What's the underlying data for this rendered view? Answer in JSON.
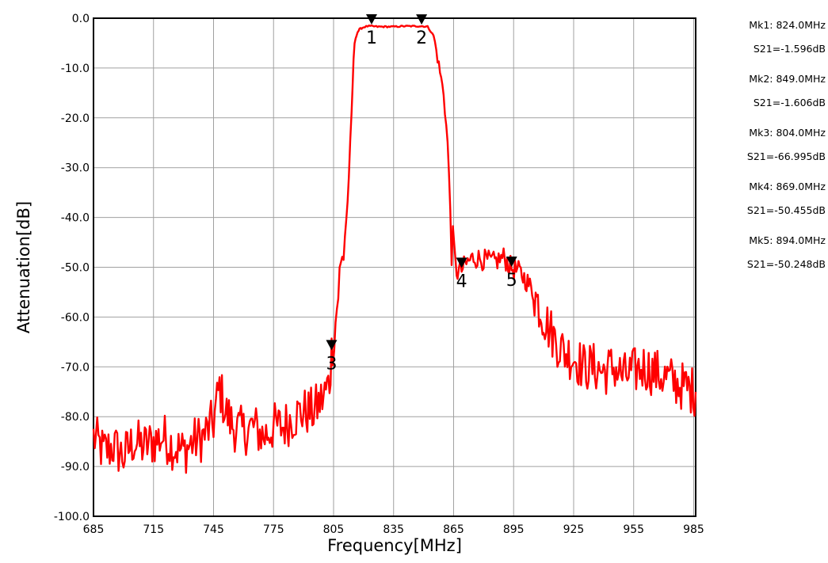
{
  "chart_data": {
    "type": "line",
    "xlabel": "Frequency[MHz]",
    "ylabel": "Attenuation[dB]",
    "xlim": [
      685,
      986
    ],
    "ylim": [
      -100,
      0
    ],
    "x_ticks": [
      "685",
      "715",
      "745",
      "775",
      "805",
      "835",
      "865",
      "895",
      "925",
      "955",
      "985"
    ],
    "y_ticks": [
      "0.0",
      "-10.0",
      "-20.0",
      "-30.0",
      "-40.0",
      "-50.0",
      "-60.0",
      "-70.0",
      "-80.0",
      "-90.0",
      "-100.0"
    ],
    "grid": true,
    "series": [
      {
        "color": "#ff0000",
        "x": [
          685,
          690,
          695,
          700,
          705,
          710,
          715,
          720,
          725,
          730,
          735,
          740,
          745,
          748,
          751,
          755,
          760,
          765,
          770,
          775,
          780,
          785,
          790,
          795,
          800,
          803,
          804,
          806,
          808,
          810,
          812,
          814,
          815,
          816,
          817,
          818,
          819,
          820,
          822,
          824,
          827,
          830,
          835,
          840,
          845,
          849,
          852,
          855,
          857,
          860,
          862,
          864,
          866,
          867,
          869,
          872,
          875,
          880,
          885,
          890,
          894,
          898,
          902,
          906,
          910,
          915,
          920,
          925,
          930,
          935,
          940,
          945,
          950,
          955,
          960,
          965,
          970,
          975,
          980,
          986
        ],
        "y": [
          -84,
          -87,
          -86,
          -88,
          -85,
          -86,
          -85,
          -84,
          -86,
          -87,
          -85,
          -84,
          -81,
          -74,
          -79,
          -82,
          -83,
          -82,
          -84,
          -82,
          -82,
          -80,
          -79,
          -79,
          -76,
          -73,
          -67,
          -61,
          -52,
          -47,
          -37,
          -20,
          -8,
          -4,
          -2.8,
          -2.2,
          -2,
          -1.8,
          -1.6,
          -1.6,
          -1.7,
          -1.7,
          -1.7,
          -1.6,
          -1.6,
          -1.6,
          -1.7,
          -3.5,
          -8,
          -15,
          -25,
          -45,
          -50,
          -51,
          -50.5,
          -49,
          -48,
          -48.5,
          -49,
          -48,
          -50.2,
          -51,
          -53,
          -56,
          -60,
          -64,
          -67,
          -68,
          -70,
          -70,
          -71,
          -70,
          -72,
          -71,
          -70,
          -71,
          -72,
          -73,
          -74,
          -75
        ]
      }
    ],
    "markers": [
      {
        "label": "1",
        "freq": 824.0,
        "value": -1.596
      },
      {
        "label": "2",
        "freq": 849.0,
        "value": -1.606
      },
      {
        "label": "3",
        "freq": 804.0,
        "value": -66.995
      },
      {
        "label": "4",
        "freq": 869.0,
        "value": -50.455
      },
      {
        "label": "5",
        "freq": 894.0,
        "value": -50.248
      }
    ],
    "marker_readout": [
      {
        "mk": "Mk1:  824.0MHz",
        "s21": "S21=-1.596dB"
      },
      {
        "mk": "Mk2:  849.0MHz",
        "s21": "S21=-1.606dB"
      },
      {
        "mk": "Mk3:  804.0MHz",
        "s21": "S21=-66.995dB"
      },
      {
        "mk": "Mk4:  869.0MHz",
        "s21": "S21=-50.455dB"
      },
      {
        "mk": "Mk5:  894.0MHz",
        "s21": "S21=-50.248dB"
      }
    ]
  }
}
